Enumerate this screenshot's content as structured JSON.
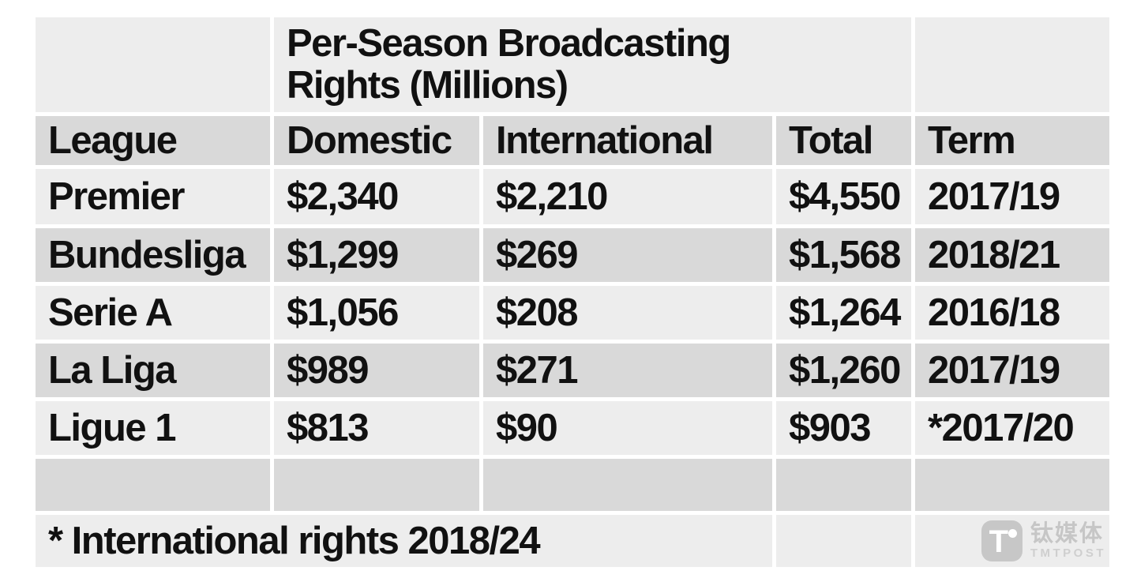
{
  "table": {
    "title": "Per-Season Broadcasting\nRights (Millions)",
    "columns": [
      "League",
      "Domestic",
      "International",
      "Total",
      "Term"
    ],
    "rows": [
      {
        "league": "Premier",
        "domestic": "$2,340",
        "international": "$2,210",
        "total": "$4,550",
        "term": "2017/19"
      },
      {
        "league": "Bundesliga",
        "domestic": "$1,299",
        "international": "$269",
        "total": "$1,568",
        "term": "2018/21"
      },
      {
        "league": "Serie A",
        "domestic": "$1,056",
        "international": "$208",
        "total": "$1,264",
        "term": "2016/18"
      },
      {
        "league": "La Liga",
        "domestic": "$989",
        "international": "$271",
        "total": "$1,260",
        "term": "2017/19"
      },
      {
        "league": "Ligue 1",
        "domestic": "$813",
        "international": "$90",
        "total": "$903",
        "term": "*2017/20"
      }
    ],
    "footnote": "* International rights 2018/24"
  },
  "watermark": {
    "letter": "T",
    "name_cn": "钛媒体",
    "name_en": "TMTPOST"
  },
  "colors": {
    "row_light": "#ededed",
    "row_dark": "#d9d9d9",
    "text": "#111111",
    "watermark_gray": "#c7c7c7",
    "background": "#ffffff"
  },
  "chart_data": {
    "type": "table",
    "title": "Per-Season Broadcasting Rights (Millions)",
    "columns": [
      "League",
      "Domestic",
      "International",
      "Total",
      "Term"
    ],
    "rows": [
      [
        "Premier",
        "$2,340",
        "$2,210",
        "$4,550",
        "2017/19"
      ],
      [
        "Bundesliga",
        "$1,299",
        "$269",
        "$1,568",
        "2018/21"
      ],
      [
        "Serie A",
        "$1,056",
        "$208",
        "$1,264",
        "2016/18"
      ],
      [
        "La Liga",
        "$989",
        "$271",
        "$1,260",
        "2017/19"
      ],
      [
        "Ligue 1",
        "$813",
        "$90",
        "$903",
        "*2017/20"
      ]
    ],
    "series": [
      {
        "name": "Domestic",
        "values": [
          2340,
          1299,
          1056,
          989,
          813
        ]
      },
      {
        "name": "International",
        "values": [
          2210,
          269,
          208,
          271,
          90
        ]
      },
      {
        "name": "Total",
        "values": [
          4550,
          1568,
          1264,
          1260,
          903
        ]
      }
    ],
    "categories": [
      "Premier",
      "Bundesliga",
      "Serie A",
      "La Liga",
      "Ligue 1"
    ],
    "terms": [
      "2017/19",
      "2018/21",
      "2016/18",
      "2017/19",
      "*2017/20"
    ],
    "footnote": "* International rights 2018/24",
    "units": "USD millions per season"
  }
}
